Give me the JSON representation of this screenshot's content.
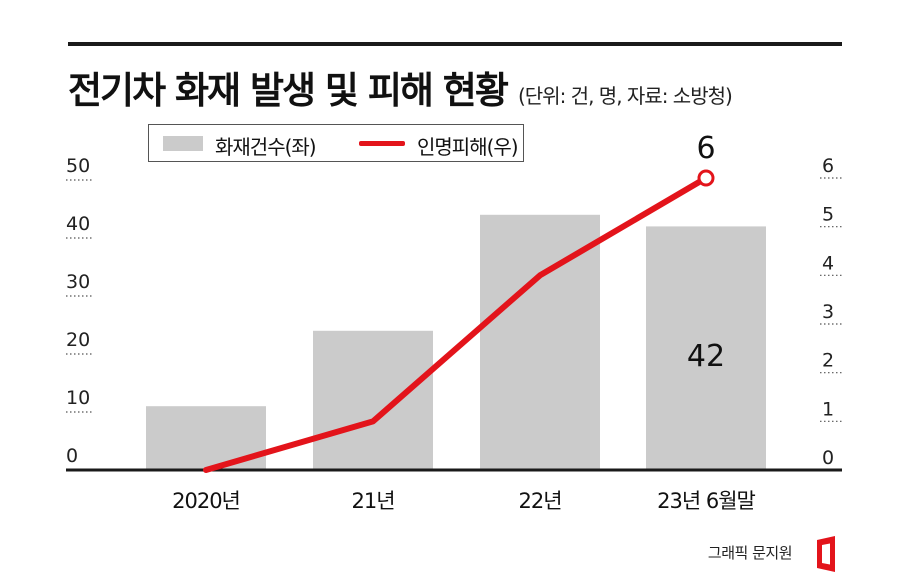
{
  "title": "전기차 화재 발생 및 피해 현황",
  "subtitle": "(단위: 건, 명, 자료: 소방청)",
  "legend": {
    "bars_label": "화재건수(좌)",
    "line_label": "인명피해(우)"
  },
  "credit": "그래픽 문지원",
  "colors": {
    "bar": "#cbcbcb",
    "line": "#e3141b",
    "axis": "#1a1a1a"
  },
  "chart_data": {
    "type": "bar",
    "categories": [
      "2020년",
      "21년",
      "22년",
      "23년 6월말"
    ],
    "series": [
      {
        "name": "화재건수(좌)",
        "type": "bar",
        "axis": "left",
        "values": [
          11,
          24,
          44,
          42
        ]
      },
      {
        "name": "인명피해(우)",
        "type": "line",
        "axis": "right",
        "values": [
          0,
          1,
          4,
          6
        ]
      }
    ],
    "y_left": {
      "range": [
        0,
        50
      ],
      "ticks": [
        "0",
        "10",
        "20",
        "30",
        "40",
        "50"
      ]
    },
    "y_right": {
      "range": [
        0,
        6
      ],
      "ticks": [
        "0",
        "1",
        "2",
        "3",
        "4",
        "5",
        "6"
      ]
    },
    "annotations": [
      {
        "series": "화재건수(좌)",
        "category": "23년 6월말",
        "text": "42"
      },
      {
        "series": "인명피해(우)",
        "category": "23년 6월말",
        "text": "6"
      }
    ],
    "grid": false,
    "legend_position": "top-left"
  }
}
